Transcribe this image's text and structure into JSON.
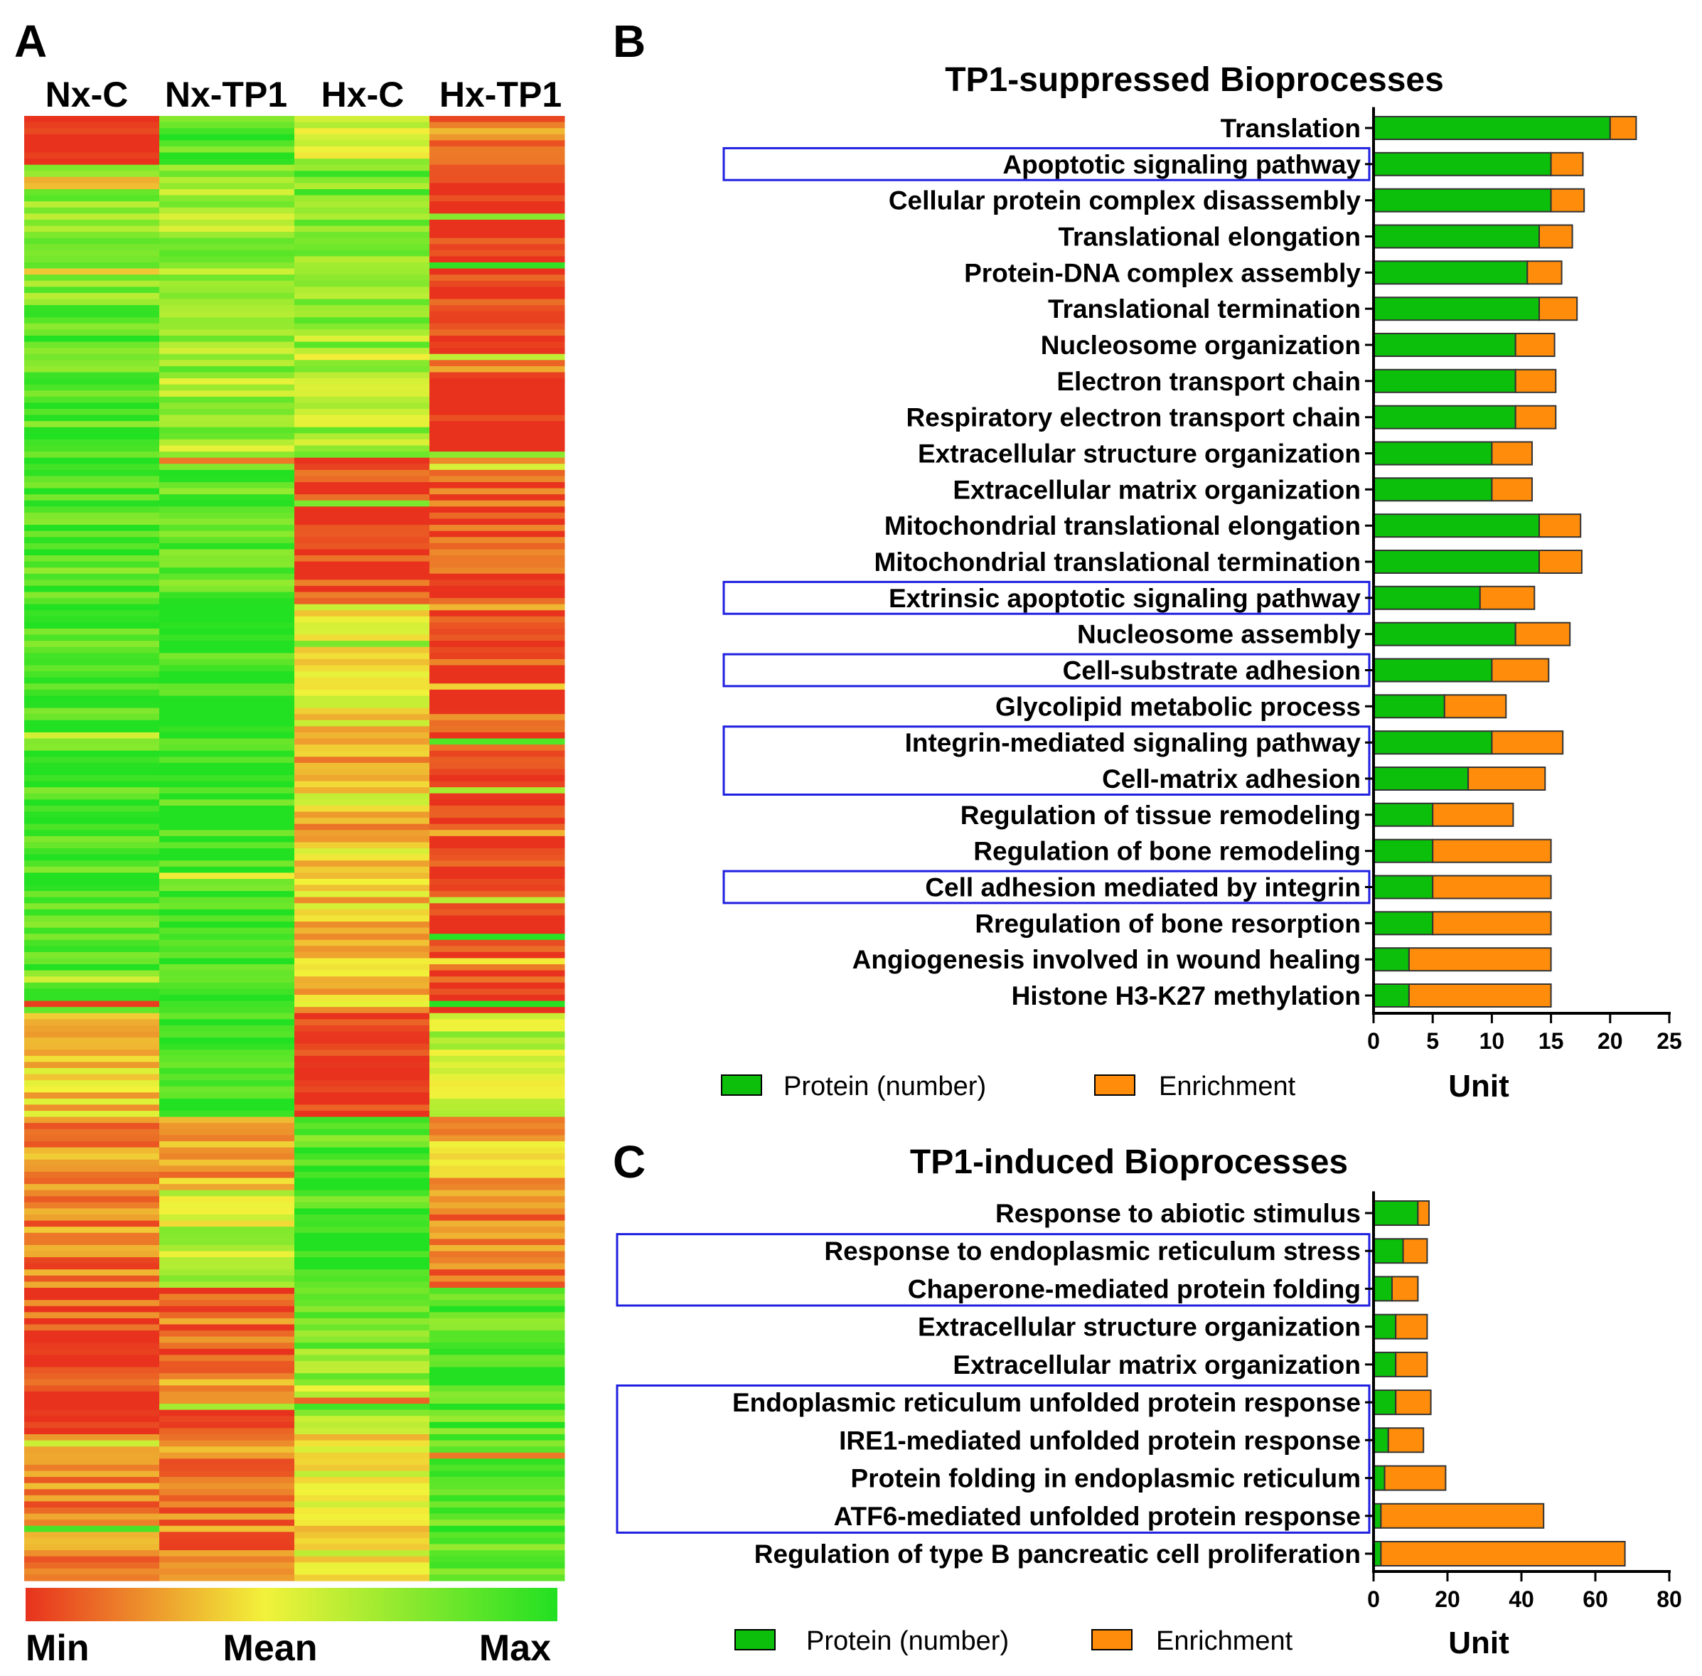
{
  "panels": {
    "a": "A",
    "b": "B",
    "c": "C"
  },
  "heatmap": {
    "columns": [
      "Nx-C",
      "Nx-TP1",
      "Hx-C",
      "Hx-TP1"
    ],
    "scale": {
      "min": "Min",
      "mean": "Mean",
      "max": "Max"
    },
    "colors": {
      "low": "#e8321e",
      "mid": "#f2f23a",
      "high": "#22e022"
    }
  },
  "colors": {
    "protein": "#0bbf0b",
    "enrichment": "#ff8c0a"
  },
  "chart_data": [
    {
      "type": "bar",
      "stacked": true,
      "orientation": "horizontal",
      "title": "TP1-suppressed Bioprocesses",
      "xlabel": "Unit",
      "xlim": [
        0,
        25
      ],
      "xticks": [
        0,
        5,
        10,
        15,
        20,
        25
      ],
      "categories": [
        "Translation",
        "Apoptotic signaling pathway",
        "Cellular protein complex disassembly",
        "Translational elongation",
        "Protein-DNA complex assembly",
        "Translational termination",
        "Nucleosome organization",
        "Electron transport chain",
        "Respiratory electron transport chain",
        "Extracellular structure organization",
        "Extracellular matrix organization",
        "Mitochondrial translational elongation",
        "Mitochondrial translational termination",
        "Extrinsic apoptotic signaling pathway",
        "Nucleosome assembly",
        "Cell-substrate adhesion",
        "Glycolipid metabolic process",
        "Integrin-mediated signaling pathway",
        "Cell-matrix adhesion",
        "Regulation of tissue remodeling",
        "Regulation of bone remodeling",
        "Cell adhesion mediated by integrin",
        "Rregulation of bone resorption",
        "Angiogenesis involved in wound healing",
        "Histone H3-K27 methylation"
      ],
      "series": [
        {
          "name": "Protein (number)",
          "values": [
            20,
            15,
            15,
            14,
            13,
            14,
            12,
            12,
            12,
            10,
            10,
            14,
            14,
            9,
            12,
            10,
            6,
            10,
            8,
            5,
            5,
            5,
            5,
            3,
            3
          ]
        },
        {
          "name": "Enrichment",
          "values": [
            2.2,
            2.7,
            2.8,
            2.8,
            2.9,
            3.2,
            3.3,
            3.4,
            3.4,
            3.4,
            3.4,
            3.5,
            3.6,
            4.6,
            4.6,
            4.8,
            5.2,
            6.0,
            6.5,
            6.8,
            10,
            10,
            10,
            12,
            12
          ]
        }
      ],
      "highlight_groups": [
        [
          1
        ],
        [
          13
        ],
        [
          15
        ],
        [
          17,
          18
        ],
        [
          21
        ]
      ],
      "legend": "bottom"
    },
    {
      "type": "bar",
      "stacked": true,
      "orientation": "horizontal",
      "title": "TP1-induced Bioprocesses",
      "xlabel": "Unit",
      "xlim": [
        0,
        80
      ],
      "xticks": [
        0,
        20,
        40,
        60,
        80
      ],
      "categories": [
        "Response to abiotic stimulus",
        "Response to endoplasmic reticulum stress",
        "Chaperone-mediated protein folding",
        "Extracellular structure organization",
        "Extracellular matrix organization",
        "Endoplasmic reticulum unfolded protein response",
        "IRE1-mediated unfolded protein response",
        "Protein folding in endoplasmic reticulum",
        "ATF6-mediated unfolded protein response",
        "Regulation of type B pancreatic cell proliferation"
      ],
      "series": [
        {
          "name": "Protein (number)",
          "values": [
            12,
            8,
            5,
            6,
            6,
            6,
            4,
            3,
            2,
            2
          ]
        },
        {
          "name": "Enrichment",
          "values": [
            3,
            6.5,
            7,
            8.5,
            8.5,
            9.5,
            9.5,
            16.5,
            44,
            66
          ]
        }
      ],
      "highlight_groups": [
        [
          1,
          2
        ],
        [
          5,
          6,
          7,
          8
        ]
      ],
      "legend": "bottom"
    }
  ]
}
